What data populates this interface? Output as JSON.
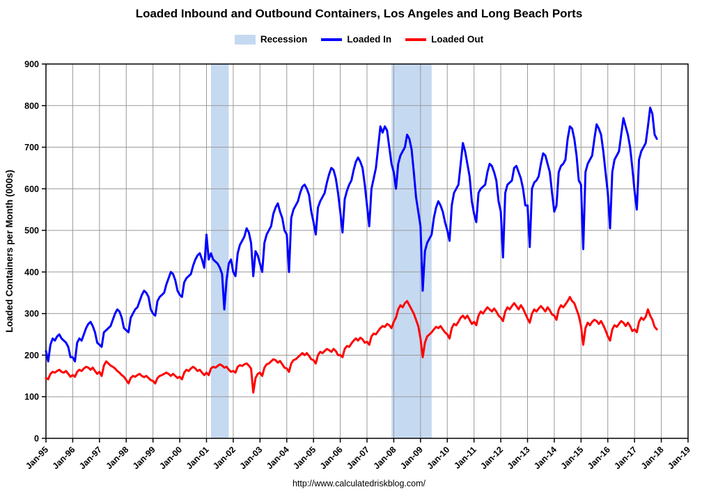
{
  "title": "Loaded Inbound and Outbound Containers, Los Angeles and Long Beach Ports",
  "footer_url": "http://www.calculatedriskblog.com/",
  "legend": [
    {
      "label": "Recession",
      "type": "band",
      "color": "#C5D9F1"
    },
    {
      "label": "Loaded In",
      "type": "line",
      "color": "#0000FF"
    },
    {
      "label": "Loaded Out",
      "type": "line",
      "color": "#FF0000"
    }
  ],
  "chart_data": {
    "type": "line",
    "title": "Loaded Inbound and Outbound Containers, Los Angeles and Long Beach Ports",
    "xlabel": "",
    "ylabel": "Loaded Containers per Month (000s)",
    "ylim": [
      0,
      900
    ],
    "ytick_step": 100,
    "grid": true,
    "grid_color": "#999999",
    "recession_color": "#C5D9F1",
    "legend_position": "top",
    "x_start": "Jan-1995",
    "x_frequency": "monthly",
    "x_total_months": 288,
    "x_tick_labels": [
      "Jan-95",
      "Jan-96",
      "Jan-97",
      "Jan-98",
      "Jan-99",
      "Jan-00",
      "Jan-01",
      "Jan-02",
      "Jan-03",
      "Jan-04",
      "Jan-05",
      "Jan-06",
      "Jan-07",
      "Jan-08",
      "Jan-09",
      "Jan-10",
      "Jan-11",
      "Jan-12",
      "Jan-13",
      "Jan-14",
      "Jan-15",
      "Jan-16",
      "Jan-17",
      "Jan-18",
      "Jan-19"
    ],
    "recessions": [
      {
        "label": "Mar-2001 to Nov-2001",
        "start_month_index": 74,
        "end_month_index": 82
      },
      {
        "label": "Dec-2007 to Jun-2009",
        "start_month_index": 155,
        "end_month_index": 173
      }
    ],
    "series": [
      {
        "name": "Loaded In",
        "color": "#0000FF",
        "values": [
          210,
          185,
          225,
          240,
          235,
          245,
          250,
          240,
          235,
          230,
          220,
          195,
          195,
          185,
          230,
          240,
          235,
          250,
          265,
          275,
          280,
          270,
          255,
          230,
          225,
          220,
          255,
          260,
          265,
          270,
          285,
          300,
          310,
          305,
          290,
          265,
          260,
          255,
          290,
          300,
          310,
          315,
          330,
          345,
          355,
          350,
          340,
          310,
          300,
          295,
          330,
          340,
          345,
          350,
          370,
          385,
          400,
          395,
          380,
          355,
          345,
          340,
          375,
          385,
          390,
          395,
          415,
          430,
          440,
          445,
          430,
          410,
          490,
          430,
          445,
          430,
          425,
          420,
          410,
          395,
          310,
          380,
          420,
          430,
          400,
          390,
          445,
          465,
          475,
          485,
          505,
          495,
          470,
          390,
          450,
          440,
          420,
          400,
          470,
          490,
          500,
          510,
          540,
          555,
          565,
          545,
          530,
          500,
          490,
          400,
          530,
          550,
          560,
          570,
          590,
          605,
          610,
          600,
          585,
          545,
          520,
          490,
          555,
          570,
          580,
          590,
          615,
          635,
          650,
          645,
          625,
          590,
          545,
          495,
          575,
          595,
          610,
          620,
          645,
          665,
          675,
          665,
          650,
          610,
          560,
          510,
          600,
          625,
          650,
          700,
          750,
          735,
          750,
          740,
          700,
          660,
          640,
          600,
          660,
          680,
          690,
          700,
          730,
          720,
          695,
          640,
          580,
          545,
          510,
          355,
          450,
          470,
          480,
          490,
          530,
          555,
          570,
          560,
          545,
          520,
          500,
          475,
          560,
          590,
          600,
          610,
          660,
          710,
          690,
          660,
          630,
          570,
          540,
          520,
          590,
          600,
          605,
          610,
          640,
          660,
          655,
          640,
          620,
          570,
          545,
          435,
          590,
          610,
          615,
          620,
          650,
          655,
          640,
          625,
          600,
          560,
          560,
          460,
          600,
          615,
          620,
          630,
          660,
          685,
          680,
          660,
          640,
          590,
          545,
          560,
          640,
          655,
          660,
          670,
          720,
          750,
          745,
          720,
          680,
          620,
          610,
          455,
          640,
          660,
          670,
          680,
          720,
          755,
          745,
          730,
          690,
          640,
          590,
          505,
          640,
          670,
          680,
          690,
          730,
          770,
          750,
          730,
          700,
          650,
          595,
          550,
          670,
          690,
          700,
          710,
          750,
          795,
          780,
          730,
          720
        ]
      },
      {
        "name": "Loaded Out",
        "color": "#FF0000",
        "values": [
          145,
          142,
          155,
          160,
          158,
          162,
          165,
          160,
          158,
          162,
          155,
          148,
          152,
          148,
          160,
          165,
          162,
          168,
          172,
          170,
          165,
          170,
          162,
          155,
          160,
          150,
          175,
          185,
          180,
          175,
          172,
          168,
          162,
          158,
          152,
          148,
          140,
          132,
          145,
          150,
          148,
          152,
          155,
          150,
          147,
          150,
          145,
          140,
          138,
          132,
          145,
          150,
          152,
          155,
          158,
          155,
          150,
          155,
          150,
          145,
          148,
          142,
          158,
          165,
          162,
          168,
          172,
          168,
          162,
          165,
          158,
          152,
          158,
          152,
          168,
          172,
          170,
          174,
          178,
          175,
          170,
          172,
          165,
          160,
          162,
          158,
          172,
          176,
          174,
          178,
          180,
          175,
          168,
          110,
          145,
          155,
          158,
          150,
          170,
          178,
          180,
          185,
          190,
          188,
          182,
          186,
          178,
          170,
          168,
          160,
          180,
          188,
          190,
          195,
          200,
          205,
          200,
          205,
          198,
          190,
          188,
          180,
          200,
          208,
          205,
          210,
          215,
          212,
          208,
          215,
          210,
          200,
          200,
          195,
          215,
          222,
          220,
          228,
          235,
          240,
          235,
          242,
          238,
          230,
          232,
          225,
          245,
          252,
          250,
          258,
          265,
          270,
          268,
          275,
          272,
          265,
          280,
          290,
          310,
          320,
          315,
          325,
          330,
          320,
          310,
          300,
          285,
          270,
          240,
          195,
          230,
          245,
          250,
          255,
          262,
          268,
          265,
          270,
          262,
          255,
          250,
          240,
          265,
          275,
          272,
          280,
          290,
          295,
          288,
          295,
          285,
          275,
          280,
          272,
          295,
          305,
          300,
          308,
          315,
          310,
          305,
          312,
          305,
          295,
          290,
          282,
          305,
          315,
          310,
          318,
          325,
          318,
          310,
          320,
          312,
          300,
          288,
          278,
          300,
          310,
          305,
          312,
          318,
          312,
          305,
          315,
          308,
          298,
          295,
          285,
          310,
          320,
          315,
          322,
          330,
          340,
          330,
          325,
          310,
          295,
          270,
          225,
          265,
          278,
          272,
          280,
          285,
          282,
          275,
          282,
          272,
          260,
          245,
          235,
          262,
          272,
          268,
          275,
          282,
          278,
          270,
          278,
          270,
          258,
          262,
          255,
          280,
          290,
          285,
          292,
          310,
          295,
          285,
          268,
          262
        ]
      }
    ]
  }
}
